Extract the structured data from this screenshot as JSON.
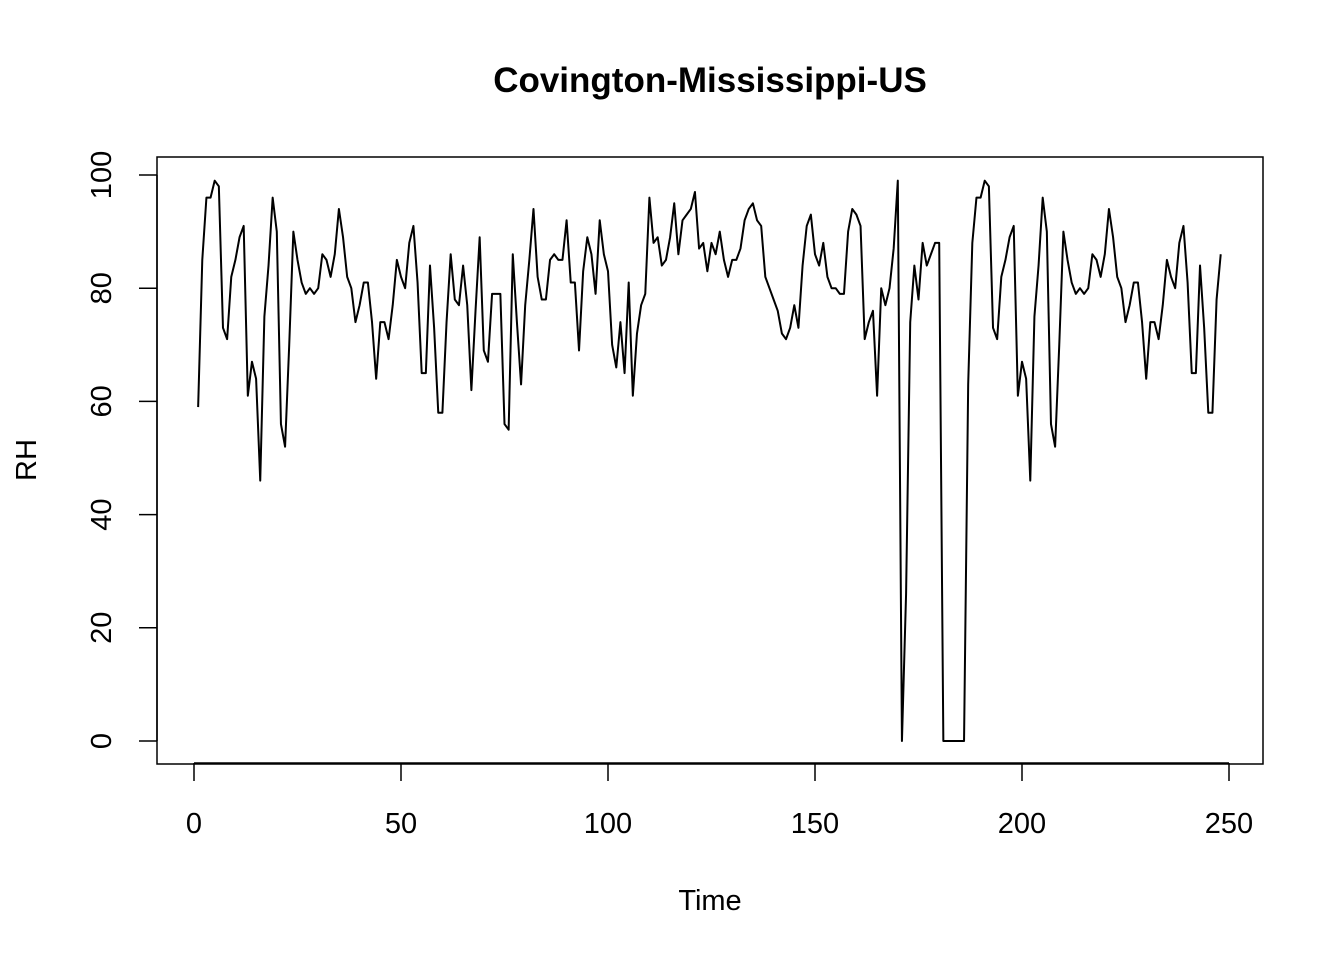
{
  "chart_data": {
    "type": "line",
    "title": "Covington-Mississippi-US",
    "xlabel": "Time",
    "ylabel": "RH",
    "xlim": [
      0,
      250
    ],
    "ylim": [
      0,
      100
    ],
    "xticks": [
      0,
      50,
      100,
      150,
      200,
      250
    ],
    "yticks": [
      0,
      20,
      40,
      60,
      80,
      100
    ],
    "xtick_labels": [
      "0",
      "50",
      "100",
      "150",
      "200",
      "250"
    ],
    "ytick_labels": [
      "0",
      "20",
      "40",
      "60",
      "80",
      "100"
    ],
    "grid": false,
    "legend": "none",
    "line_color": "#000000",
    "series": [
      {
        "values": [
          59,
          85,
          96,
          96,
          99,
          98,
          73,
          71,
          82,
          85,
          89,
          91,
          61,
          67,
          64,
          46,
          75,
          84,
          96,
          90,
          56,
          52,
          70,
          90,
          85,
          81,
          79,
          80,
          79,
          80,
          86,
          85,
          82,
          86,
          94,
          89,
          82,
          80,
          74,
          77,
          81,
          81,
          74,
          64,
          74,
          74,
          71,
          77,
          85,
          82,
          80,
          88,
          91,
          81,
          65,
          65,
          84,
          73,
          58,
          58,
          74,
          86,
          78,
          77,
          84,
          77,
          62,
          76,
          89,
          69,
          67,
          79,
          79,
          79,
          56,
          55,
          86,
          74,
          63,
          77,
          85,
          94,
          82,
          78,
          78,
          85,
          86,
          85,
          85,
          92,
          81,
          81,
          69,
          83,
          89,
          86,
          79,
          92,
          86,
          83,
          70,
          66,
          74,
          65,
          81,
          61,
          72,
          77,
          79,
          96,
          88,
          89,
          84,
          85,
          89,
          95,
          86,
          92,
          93,
          94,
          97,
          87,
          88,
          83,
          88,
          86,
          90,
          85,
          82,
          85,
          85,
          87,
          92,
          94,
          95,
          92,
          91,
          82,
          80,
          78,
          76,
          72,
          71,
          73,
          77,
          73,
          84,
          91,
          93,
          86,
          84,
          88,
          82,
          80,
          80,
          79,
          79,
          90,
          94,
          93,
          91,
          71,
          74,
          76,
          61,
          80,
          77,
          80,
          87,
          99,
          0,
          26,
          74,
          84,
          78,
          88,
          84,
          86,
          88,
          88,
          0,
          0,
          0,
          0,
          0,
          0,
          63,
          88,
          96,
          96,
          99,
          98,
          73,
          71,
          82,
          85,
          89,
          91,
          61,
          67,
          64,
          46,
          75,
          84,
          96,
          90,
          56,
          52,
          70,
          90,
          85,
          81,
          79,
          80,
          79,
          80,
          86,
          85,
          82,
          86,
          94,
          89,
          82,
          80,
          74,
          77,
          81,
          81,
          74,
          64,
          74,
          74,
          71,
          77,
          85,
          82,
          80,
          88,
          91,
          81,
          65,
          65,
          84,
          73,
          58,
          58,
          78,
          86
        ]
      }
    ]
  }
}
